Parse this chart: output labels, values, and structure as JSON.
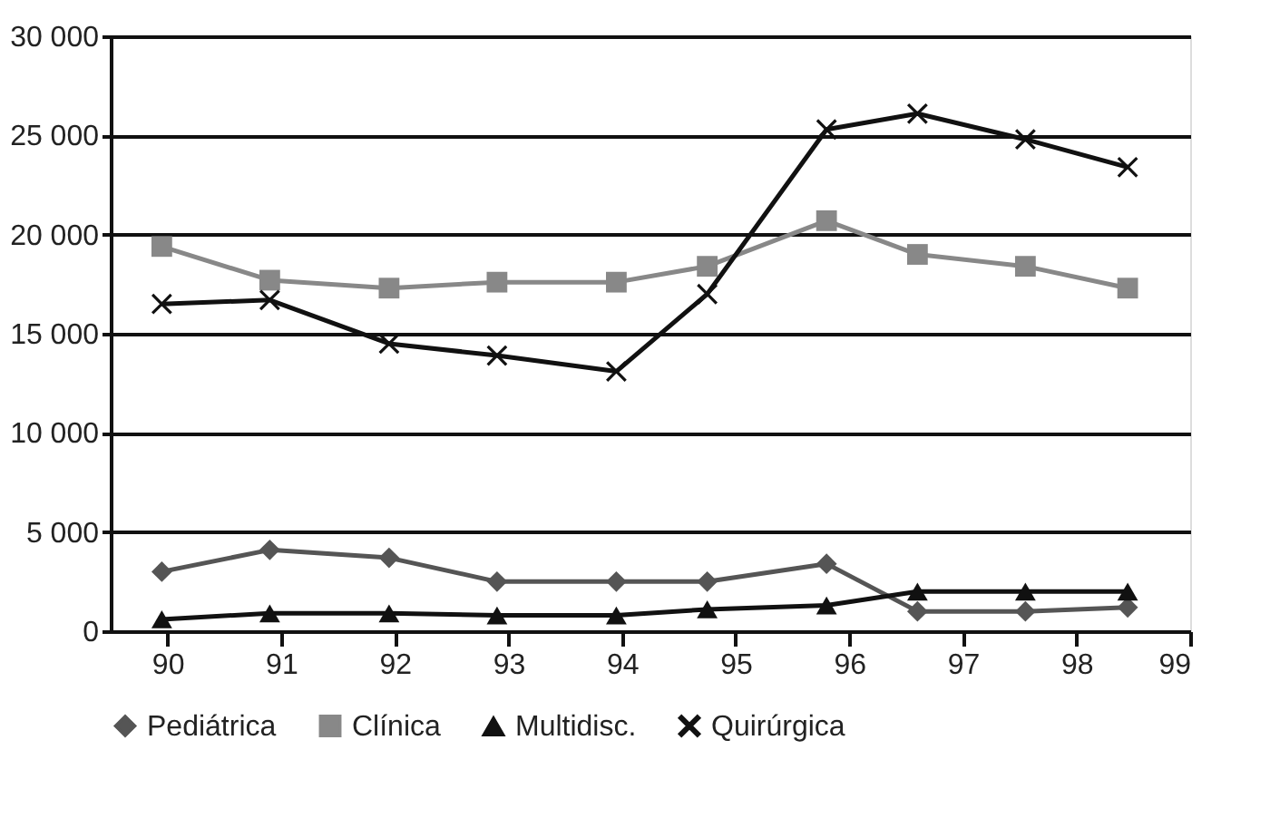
{
  "chart_data": {
    "type": "line",
    "x": [
      89.95,
      90.9,
      91.95,
      92.9,
      93.95,
      94.75,
      95.8,
      96.6,
      97.55,
      98.45
    ],
    "xlim": [
      89.5,
      99
    ],
    "xticks": [
      90,
      91,
      92,
      93,
      94,
      95,
      96,
      97,
      98,
      99
    ],
    "ylim": [
      0,
      30000
    ],
    "yticks": [
      {
        "value": 0,
        "label": "0"
      },
      {
        "value": 5000,
        "label": "5 000"
      },
      {
        "value": 10000,
        "label": "10 000"
      },
      {
        "value": 15000,
        "label": "15 000"
      },
      {
        "value": 20000,
        "label": "20 000"
      },
      {
        "value": 25000,
        "label": "25 000"
      },
      {
        "value": 30000,
        "label": "30 000"
      }
    ],
    "grid": "y",
    "legend": "bottom",
    "series": [
      {
        "name": "Pediátrica",
        "color": "#555555",
        "marker": "diamond",
        "values": [
          3000,
          4100,
          3700,
          2500,
          2500,
          2500,
          3400,
          1000,
          1000,
          1200
        ]
      },
      {
        "name": "Clínica",
        "color": "#888888",
        "marker": "square",
        "values": [
          19400,
          17700,
          17300,
          17600,
          17600,
          18400,
          20700,
          19000,
          18400,
          17300
        ]
      },
      {
        "name": "Multidisc.",
        "color": "#111111",
        "marker": "triangle",
        "values": [
          600,
          900,
          900,
          800,
          800,
          1100,
          1300,
          2000,
          2000,
          2000
        ]
      },
      {
        "name": "Quirúrgica",
        "color": "#111111",
        "marker": "cross",
        "values": [
          16500,
          16700,
          14500,
          13900,
          13100,
          17000,
          25300,
          26100,
          24800,
          23400
        ]
      }
    ]
  }
}
